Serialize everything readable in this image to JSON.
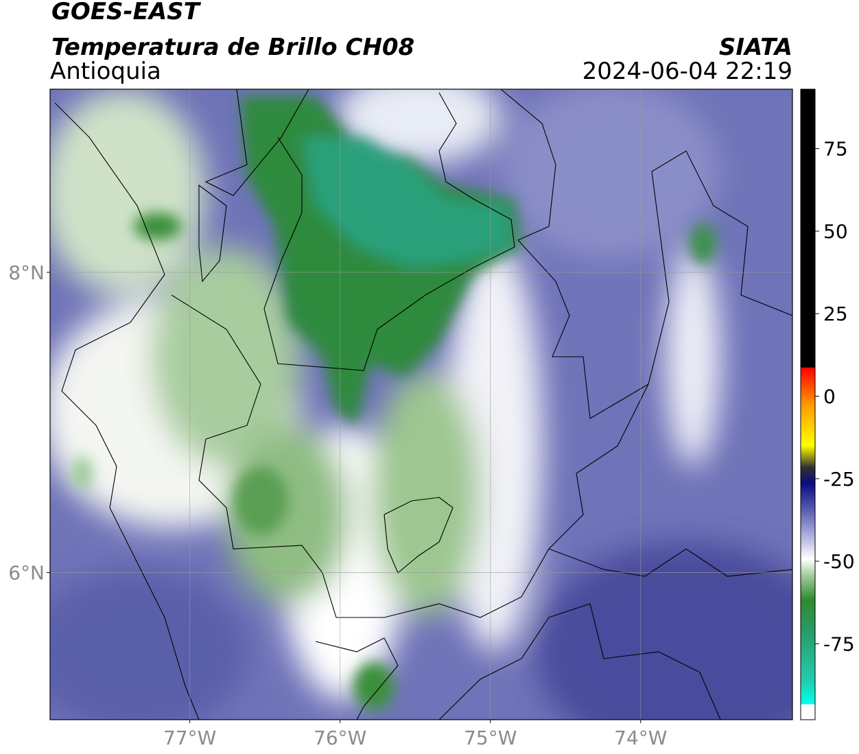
{
  "header": {
    "title": "GOES-EAST",
    "subtitle": "Temperatura de Brillo CH08",
    "region": "Antioquia",
    "source": "SIATA",
    "datetime": "2024-06-04 22:19"
  },
  "map": {
    "xlim": [
      -77.93,
      -72.99
    ],
    "ylim": [
      5.02,
      9.22
    ],
    "xticks": [
      {
        "value": -77,
        "label": "77°W"
      },
      {
        "value": -76,
        "label": "76°W"
      },
      {
        "value": -75,
        "label": "75°W"
      },
      {
        "value": -74,
        "label": "74°W"
      }
    ],
    "yticks": [
      {
        "value": 6,
        "label": "6°N"
      },
      {
        "value": 8,
        "label": "8°N"
      }
    ],
    "grid": true
  },
  "colorbar": {
    "clim": [
      -98,
      93
    ],
    "ticks": [
      -75,
      -50,
      -25,
      0,
      25,
      50,
      75
    ]
  }
}
